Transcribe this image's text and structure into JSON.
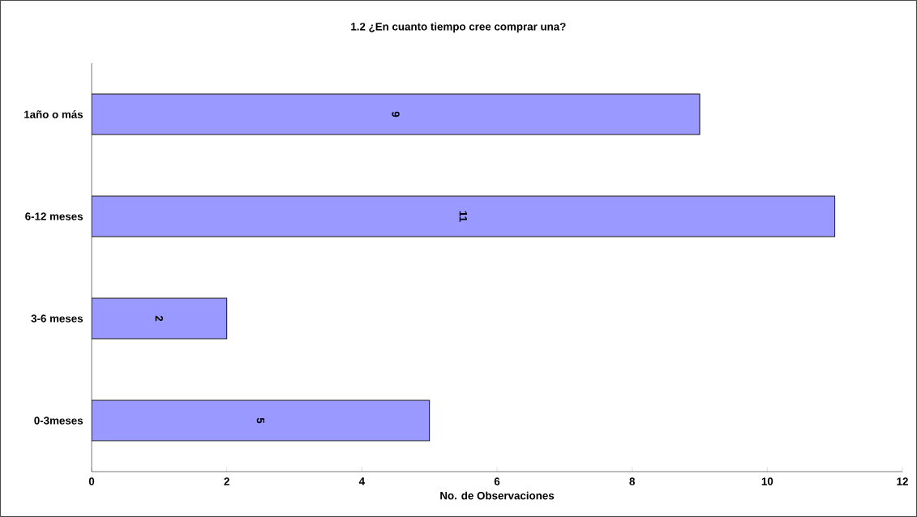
{
  "chart_data": {
    "type": "bar",
    "orientation": "horizontal",
    "title": "1.2 ¿En cuanto tiempo cree comprar una?",
    "xlabel": "No. de Observaciones",
    "categories": [
      "1año o más",
      "6-12 meses",
      "3-6 meses",
      "0-3meses"
    ],
    "values": [
      9,
      11,
      2,
      5
    ],
    "color": "#9999ff",
    "xlim": [
      0,
      12
    ],
    "xticks": [
      0,
      2,
      4,
      6,
      8,
      10,
      12
    ],
    "grid": false,
    "data_labels": true
  }
}
